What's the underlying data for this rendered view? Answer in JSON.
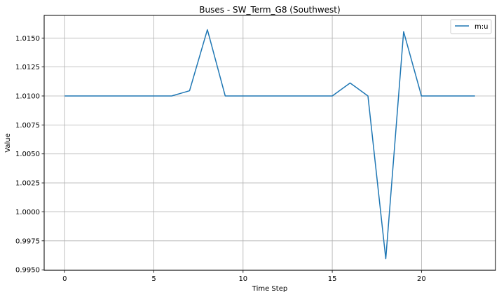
{
  "chart_data": {
    "type": "line",
    "title": "Buses - SW_Term_G8 (Southwest)",
    "xlabel": "Time Step",
    "ylabel": "Value",
    "xlim": [
      -1.15,
      24.15
    ],
    "ylim": [
      0.99495,
      1.01695
    ],
    "xticks": [
      0,
      5,
      10,
      15,
      20
    ],
    "xtick_labels": [
      "0",
      "5",
      "10",
      "15",
      "20"
    ],
    "yticks": [
      0.995,
      0.9975,
      1.0,
      1.0025,
      1.005,
      1.0075,
      1.01,
      1.0125,
      1.015
    ],
    "ytick_labels": [
      "0.9950",
      "0.9975",
      "1.0000",
      "1.0025",
      "1.0050",
      "1.0075",
      "1.0100",
      "1.0125",
      "1.0150"
    ],
    "grid": true,
    "legend_position": "top-right",
    "series": [
      {
        "name": "m:u",
        "color": "#1f77b4",
        "x": [
          0,
          1,
          2,
          3,
          4,
          5,
          6,
          7,
          8,
          9,
          10,
          11,
          12,
          13,
          14,
          15,
          16,
          17,
          18,
          19,
          20,
          21,
          22,
          23
        ],
        "y": [
          1.01,
          1.01,
          1.01,
          1.01,
          1.01,
          1.01,
          1.01,
          1.01045,
          1.01572,
          1.01,
          1.01,
          1.01,
          1.01,
          1.01,
          1.01,
          1.01,
          1.01112,
          1.01,
          0.99595,
          1.01555,
          1.01,
          1.01,
          1.01,
          1.01
        ]
      }
    ]
  }
}
